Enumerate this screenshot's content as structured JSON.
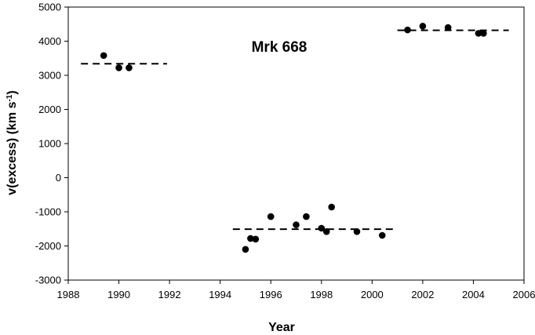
{
  "chart_data": {
    "type": "scatter",
    "title": "",
    "annotation": "Mrk 668",
    "xlabel": "Year",
    "ylabel": {
      "main": "v(excess)   (km s",
      "sup": "-1",
      "end": ")"
    },
    "xlim": [
      1988,
      2006
    ],
    "ylim": [
      -3000,
      5000
    ],
    "x_ticks": [
      1988,
      1990,
      1992,
      1994,
      1996,
      1998,
      2000,
      2002,
      2004,
      2006
    ],
    "y_ticks": [
      -3000,
      -2000,
      -1000,
      0,
      1000,
      2000,
      3000,
      4000,
      5000
    ],
    "grid": false,
    "legend": "none",
    "colors": {
      "points": "#000000",
      "lines": "#000000",
      "axes": "#000000"
    },
    "series": [
      {
        "points": [
          {
            "x": 1989.4,
            "y": 3580
          },
          {
            "x": 1990.0,
            "y": 3220
          },
          {
            "x": 1990.4,
            "y": 3220
          },
          {
            "x": 1995.0,
            "y": -2100
          },
          {
            "x": 1995.2,
            "y": -1780
          },
          {
            "x": 1995.4,
            "y": -1800
          },
          {
            "x": 1996.0,
            "y": -1140
          },
          {
            "x": 1997.0,
            "y": -1380
          },
          {
            "x": 1997.4,
            "y": -1140
          },
          {
            "x": 1998.0,
            "y": -1480
          },
          {
            "x": 1998.2,
            "y": -1580
          },
          {
            "x": 1998.4,
            "y": -860
          },
          {
            "x": 1999.4,
            "y": -1580
          },
          {
            "x": 2000.4,
            "y": -1690
          },
          {
            "x": 2001.4,
            "y": 4330
          },
          {
            "x": 2002.0,
            "y": 4440
          },
          {
            "x": 2003.0,
            "y": 4400
          },
          {
            "x": 2004.2,
            "y": 4230
          },
          {
            "x": 2004.4,
            "y": 4230
          }
        ]
      }
    ],
    "reference_lines": [
      {
        "x": [
          1988.5,
          1991.9
        ],
        "y": 3340,
        "style": "dashed"
      },
      {
        "x": [
          1994.5,
          2000.9
        ],
        "y": -1510,
        "style": "dashed"
      },
      {
        "x": [
          2001.0,
          2005.4
        ],
        "y": 4320,
        "style": "dashed"
      }
    ]
  }
}
